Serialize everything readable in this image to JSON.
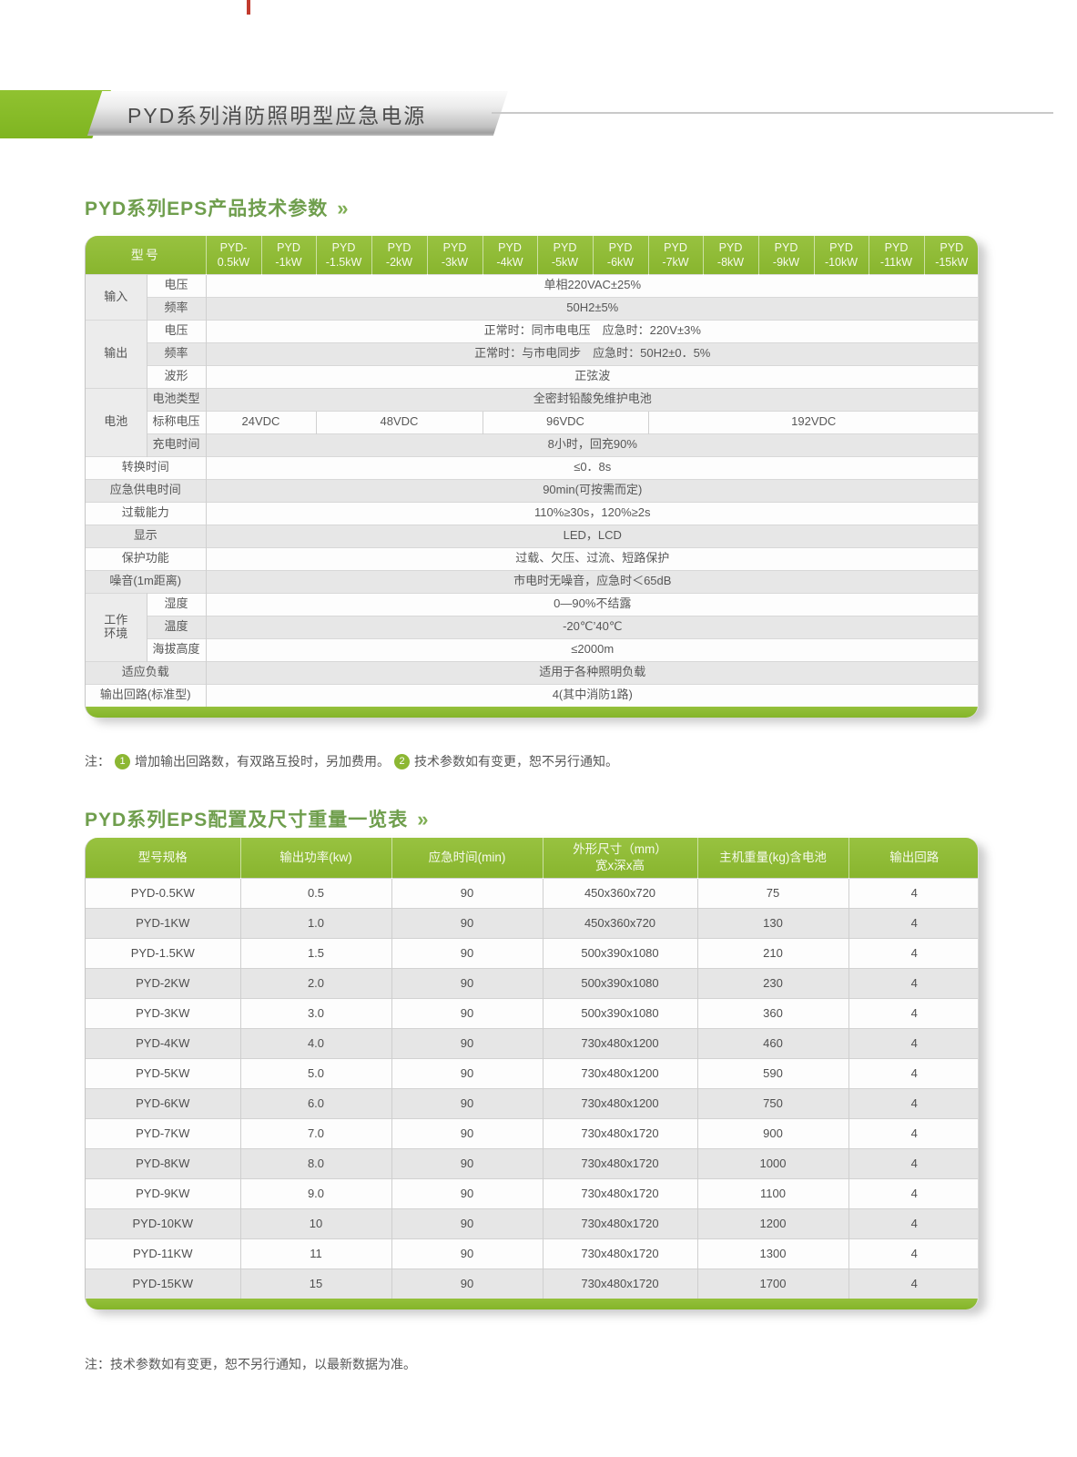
{
  "banner": {
    "title": "PYD系列消防照明型应急电源"
  },
  "colors": {
    "header_green": "#8cb733",
    "flag_green": "#85bb25",
    "title_green": "#6f9e4d",
    "row_gray": "#e7e7e7",
    "crop_mark_red": "#c23b2e"
  },
  "sections": {
    "params": {
      "title": "PYD系列EPS产品技术参数",
      "arrow": "»"
    },
    "sizes": {
      "title": "PYD系列EPS配置及尺寸重量一览表",
      "arrow": "»"
    }
  },
  "table1": {
    "corner": "型号",
    "models": [
      "PYD-\n0.5kW",
      "PYD\n-1kW",
      "PYD\n-1.5kW",
      "PYD\n-2kW",
      "PYD\n-3kW",
      "PYD\n-4kW",
      "PYD\n-5kW",
      "PYD\n-6kW",
      "PYD\n-7kW",
      "PYD\n-8kW",
      "PYD\n-9kW",
      "PYD\n-10kW",
      "PYD\n-11kW",
      "PYD\n-15kW"
    ],
    "rows": [
      {
        "group": "输入",
        "group_span": 2,
        "label": "电压",
        "value": "单相220VAC±25%"
      },
      {
        "label": "频率",
        "value": "50H2±5%"
      },
      {
        "group": "输出",
        "group_span": 3,
        "label": "电压",
        "value": "正常时：同市电电压　应急时：220V±3%"
      },
      {
        "label": "频率",
        "value": "正常时：与市电同步　应急时：50H2±0．5%"
      },
      {
        "label": "波形",
        "value": "正弦波"
      },
      {
        "group": "电池",
        "group_span": 3,
        "label": "电池类型",
        "value": "全密封铅酸免维护电池"
      },
      {
        "label": "标称电压",
        "values": [
          {
            "text": "24VDC",
            "span": 2
          },
          {
            "text": "48VDC",
            "span": 3
          },
          {
            "text": "96VDC",
            "span": 3
          },
          {
            "text": "192VDC",
            "span": 6
          }
        ]
      },
      {
        "label": "充电时间",
        "value": "8小时，回充90%"
      },
      {
        "label": "转换时间",
        "wide": true,
        "value": "≤0．8s"
      },
      {
        "label": "应急供电时间",
        "wide": true,
        "value": "90min(可按需而定)"
      },
      {
        "label": "过载能力",
        "wide": true,
        "value": "110%≥30s，120%≥2s"
      },
      {
        "label": "显示",
        "wide": true,
        "value": "LED，LCD"
      },
      {
        "label": "保护功能",
        "wide": true,
        "value": "过载、欠压、过流、短路保护"
      },
      {
        "label": "噪音(1m距离)",
        "wide": true,
        "value": "市电时无噪音，应急时＜65dB"
      },
      {
        "group": "工作\n环境",
        "group_span": 3,
        "label": "湿度",
        "value": "0—90%不结露"
      },
      {
        "label": "温度",
        "value": "-20℃’40℃"
      },
      {
        "label": "海拔高度",
        "value": "≤2000m"
      },
      {
        "label": "适应负载",
        "wide": true,
        "value": "适用于各种照明负载"
      },
      {
        "label": "输出回路(标准型)",
        "wide": true,
        "value": "4(其中消防1路)"
      }
    ],
    "note": {
      "prefix": "注：",
      "items": [
        {
          "num": "1",
          "text": "增加输出回路数，有双路互投时，另加费用。"
        },
        {
          "num": "2",
          "text": "技术参数如有变更，恕不另行通知。"
        }
      ]
    }
  },
  "table2": {
    "headers": [
      "型号规格",
      "输出功率(kw)",
      "应急时间(min)",
      "外形尺寸（mm）\n宽x深x高",
      "主机重量(kg)含电池",
      "输出回路"
    ],
    "rows": [
      [
        "PYD-0.5KW",
        "0.5",
        "90",
        "450x360x720",
        "75",
        "4"
      ],
      [
        "PYD-1KW",
        "1.0",
        "90",
        "450x360x720",
        "130",
        "4"
      ],
      [
        "PYD-1.5KW",
        "1.5",
        "90",
        "500x390x1080",
        "210",
        "4"
      ],
      [
        "PYD-2KW",
        "2.0",
        "90",
        "500x390x1080",
        "230",
        "4"
      ],
      [
        "PYD-3KW",
        "3.0",
        "90",
        "500x390x1080",
        "360",
        "4"
      ],
      [
        "PYD-4KW",
        "4.0",
        "90",
        "730x480x1200",
        "460",
        "4"
      ],
      [
        "PYD-5KW",
        "5.0",
        "90",
        "730x480x1200",
        "590",
        "4"
      ],
      [
        "PYD-6KW",
        "6.0",
        "90",
        "730x480x1200",
        "750",
        "4"
      ],
      [
        "PYD-7KW",
        "7.0",
        "90",
        "730x480x1720",
        "900",
        "4"
      ],
      [
        "PYD-8KW",
        "8.0",
        "90",
        "730x480x1720",
        "1000",
        "4"
      ],
      [
        "PYD-9KW",
        "9.0",
        "90",
        "730x480x1720",
        "1100",
        "4"
      ],
      [
        "PYD-10KW",
        "10",
        "90",
        "730x480x1720",
        "1200",
        "4"
      ],
      [
        "PYD-11KW",
        "11",
        "90",
        "730x480x1720",
        "1300",
        "4"
      ],
      [
        "PYD-15KW",
        "15",
        "90",
        "730x480x1720",
        "1700",
        "4"
      ]
    ],
    "note": "注：技术参数如有变更，恕不另行通知，以最新数据为准。"
  }
}
